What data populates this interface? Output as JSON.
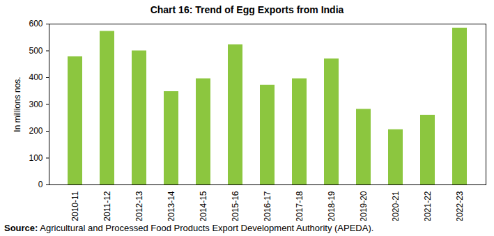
{
  "chart_data": {
    "type": "bar",
    "title": "Chart 16: Trend of Egg Exports from India",
    "y_label": "In millions nos.",
    "categories": [
      "2010-11",
      "2011-12",
      "2012-13",
      "2013-14",
      "2014-15",
      "2015-16",
      "2016-17",
      "2017-18",
      "2018-19",
      "2019-20",
      "2020-21",
      "2021-22",
      "2022-23"
    ],
    "values": [
      478,
      573,
      500,
      348,
      396,
      523,
      372,
      396,
      470,
      282,
      206,
      260,
      585
    ],
    "color": "#8cc63f",
    "ylim": [
      0,
      600
    ],
    "yticks": [
      0,
      100,
      200,
      300,
      400,
      500,
      600
    ],
    "grid": false,
    "source": "Source: Agricultural and Processed Food Products Export Development Authority (APEDA)."
  }
}
